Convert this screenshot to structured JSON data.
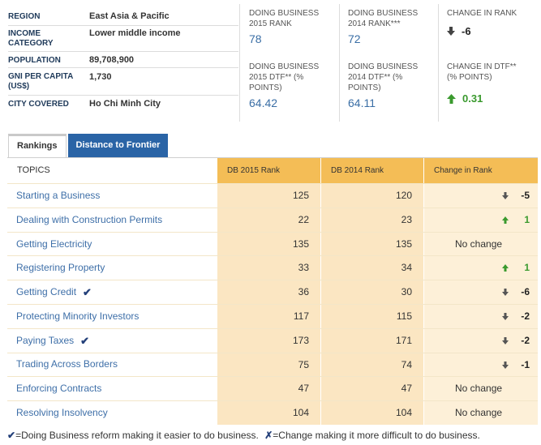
{
  "info": [
    {
      "label": "REGION",
      "value": "East Asia & Pacific"
    },
    {
      "label": "INCOME CATEGORY",
      "value": "Lower middle income"
    },
    {
      "label": "POPULATION",
      "value": "89,708,900"
    },
    {
      "label": "GNI PER CAPITA (US$)",
      "value": "1,730"
    },
    {
      "label": "CITY COVERED",
      "value": "Ho Chi Minh City"
    }
  ],
  "stats": {
    "rank2015_label": "DOING BUSINESS 2015 RANK",
    "rank2015_value": "78",
    "rank2014_label": "DOING BUSINESS 2014 RANK***",
    "rank2014_value": "72",
    "rank_change_label": "CHANGE IN RANK",
    "rank_change_value": "-6",
    "dtf2015_label": "DOING BUSINESS 2015 DTF** (% POINTS)",
    "dtf2015_value": "64.42",
    "dtf2014_label": "DOING BUSINESS 2014 DTF** (% POINTS)",
    "dtf2014_value": "64.11",
    "dtf_change_label": "CHANGE IN DTF** (% POINTS)",
    "dtf_change_value": "0.31"
  },
  "tabs": {
    "rankings": "Rankings",
    "dtf": "Distance to Frontier"
  },
  "table": {
    "headers": {
      "topics": "TOPICS",
      "db2015": "DB 2015 Rank",
      "db2014": "DB 2014 Rank",
      "change": "Change in Rank"
    },
    "rows": [
      {
        "topic": "Starting a Business",
        "check": "",
        "r2015": "125",
        "r2014": "120",
        "change_text": "",
        "change_num": "-5",
        "dir": "down"
      },
      {
        "topic": "Dealing with Construction Permits",
        "check": "",
        "r2015": "22",
        "r2014": "23",
        "change_text": "",
        "change_num": "1",
        "dir": "up"
      },
      {
        "topic": "Getting Electricity",
        "check": "",
        "r2015": "135",
        "r2014": "135",
        "change_text": "No change",
        "change_num": "",
        "dir": "none"
      },
      {
        "topic": "Registering Property",
        "check": "",
        "r2015": "33",
        "r2014": "34",
        "change_text": "",
        "change_num": "1",
        "dir": "up"
      },
      {
        "topic": "Getting Credit",
        "check": "✔",
        "r2015": "36",
        "r2014": "30",
        "change_text": "",
        "change_num": "-6",
        "dir": "down"
      },
      {
        "topic": "Protecting Minority Investors",
        "check": "",
        "r2015": "117",
        "r2014": "115",
        "change_text": "",
        "change_num": "-2",
        "dir": "down"
      },
      {
        "topic": "Paying Taxes",
        "check": "✔",
        "r2015": "173",
        "r2014": "171",
        "change_text": "",
        "change_num": "-2",
        "dir": "down"
      },
      {
        "topic": "Trading Across Borders",
        "check": "",
        "r2015": "75",
        "r2014": "74",
        "change_text": "",
        "change_num": "-1",
        "dir": "down"
      },
      {
        "topic": "Enforcing Contracts",
        "check": "",
        "r2015": "47",
        "r2014": "47",
        "change_text": "No change",
        "change_num": "",
        "dir": "none"
      },
      {
        "topic": "Resolving Insolvency",
        "check": "",
        "r2015": "104",
        "r2014": "104",
        "change_text": "No change",
        "change_num": "",
        "dir": "none"
      }
    ]
  },
  "footer": {
    "check_mark": "✔",
    "check_text": "=Doing Business reform making it easier to do business.",
    "x_mark": "✗",
    "x_text": "=Change making it more difficult to do business."
  },
  "colors": {
    "link": "#3e6fa8",
    "header_orange": "#f4bd56",
    "positive": "#3a9a2e",
    "tab_blue": "#2a64a6"
  }
}
